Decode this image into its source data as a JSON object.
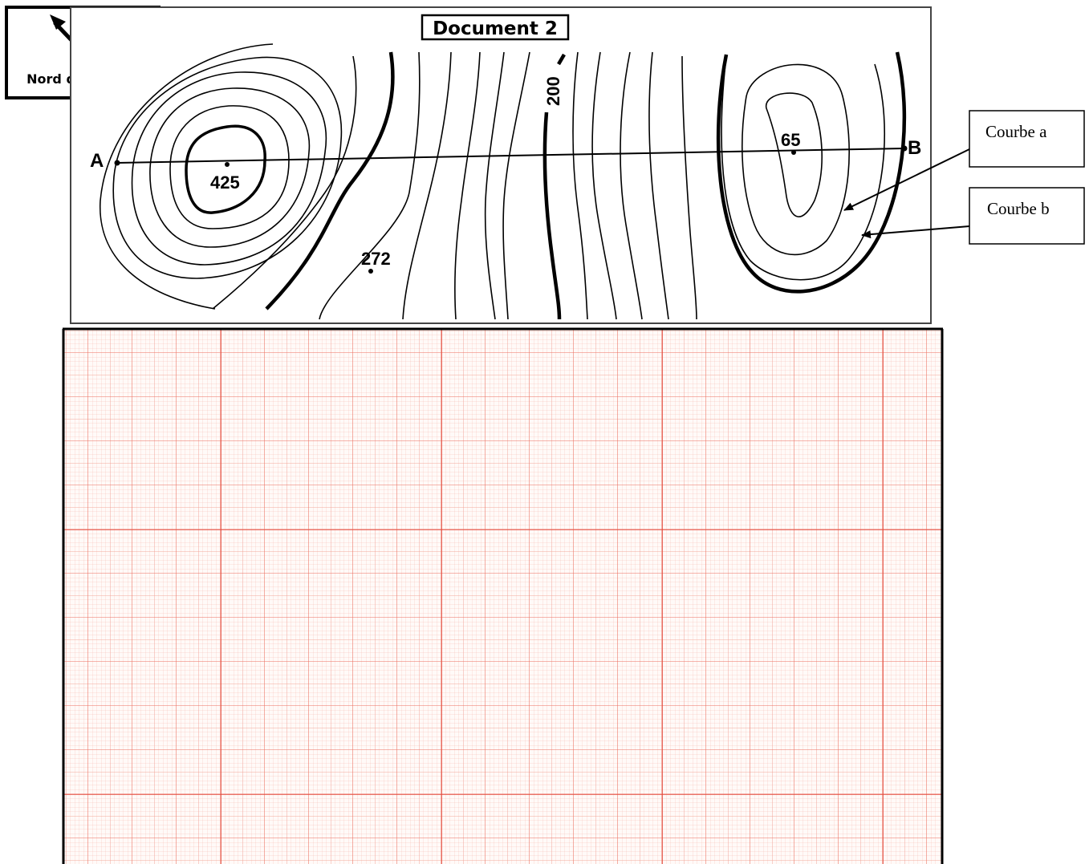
{
  "north": {
    "label": "Nord de la carte"
  },
  "document": {
    "title": "Document 2"
  },
  "map": {
    "points": {
      "a": "A",
      "b": "B"
    },
    "altitudes": {
      "summit_left": "425",
      "spot": "272",
      "contour": "200",
      "depression": "65"
    }
  },
  "callouts": {
    "a": "Courbe a",
    "b": "Courbe b"
  },
  "graph_paper": {
    "line_color": "#e8352c"
  }
}
